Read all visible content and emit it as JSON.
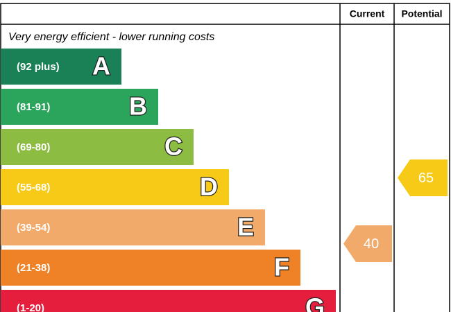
{
  "header": {
    "current": "Current",
    "potential": "Potential"
  },
  "caption": "Very energy efficient - lower running costs",
  "bands": [
    {
      "range": "(92 plus)",
      "letter": "A",
      "color": "#1a8055"
    },
    {
      "range": "(81-91)",
      "letter": "B",
      "color": "#2ba55b"
    },
    {
      "range": "(69-80)",
      "letter": "C",
      "color": "#8dbc42"
    },
    {
      "range": "(55-68)",
      "letter": "D",
      "color": "#f6ca17"
    },
    {
      "range": "(39-54)",
      "letter": "E",
      "color": "#f1aa6a"
    },
    {
      "range": "(21-38)",
      "letter": "F",
      "color": "#ef8226"
    },
    {
      "range": "(1-20)",
      "letter": "G",
      "color": "#e41e3c"
    }
  ],
  "current": {
    "value": "40",
    "color": "#f1aa6a"
  },
  "potential": {
    "value": "65",
    "color": "#f6ca17"
  }
}
